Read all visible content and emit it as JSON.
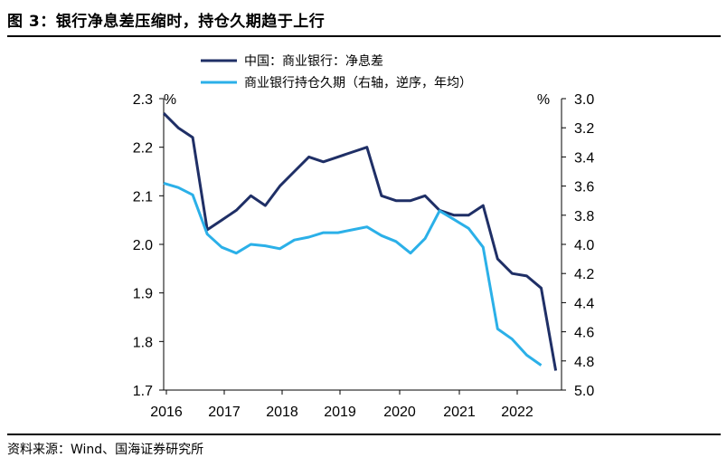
{
  "figure": {
    "title": "图 3：银行净息差压缩时，持仓久期趋于上行",
    "source": "资料来源：Wind、国海证券研究所"
  },
  "chart_data": {
    "type": "line",
    "x_ticks": [
      "2016",
      "2017",
      "2018",
      "2019",
      "2020",
      "2021",
      "2022"
    ],
    "y_left": {
      "unit": "%",
      "ylim": [
        1.7,
        2.3
      ],
      "ticks": [
        "1.7",
        "1.8",
        "1.9",
        "2.0",
        "2.1",
        "2.2",
        "2.3"
      ]
    },
    "y_right": {
      "unit": "%",
      "ylim": [
        3.0,
        5.0
      ],
      "inverted": true,
      "ticks": [
        "3.0",
        "3.2",
        "3.4",
        "3.6",
        "3.8",
        "4.0",
        "4.2",
        "4.4",
        "4.6",
        "4.8",
        "5.0"
      ]
    },
    "series": [
      {
        "name": "中国：商业银行：净息差",
        "axis": "left",
        "color": "#1f2f66",
        "x": [
          2016.0,
          2016.25,
          2016.5,
          2016.75,
          2017.0,
          2017.25,
          2017.5,
          2017.75,
          2018.0,
          2018.25,
          2018.5,
          2018.75,
          2019.0,
          2019.25,
          2019.5,
          2019.75,
          2020.0,
          2020.25,
          2020.5,
          2020.75,
          2021.0,
          2021.25,
          2021.5,
          2021.75,
          2022.0,
          2022.25,
          2022.5,
          2022.75
        ],
        "values": [
          2.27,
          2.24,
          2.22,
          2.03,
          2.05,
          2.07,
          2.1,
          2.08,
          2.12,
          2.15,
          2.18,
          2.17,
          2.18,
          2.19,
          2.2,
          2.1,
          2.09,
          2.09,
          2.1,
          2.07,
          2.06,
          2.06,
          2.08,
          1.97,
          1.94,
          1.935,
          1.91,
          1.74
        ]
      },
      {
        "name": "商业银行持仓久期（右轴，逆序，年均）",
        "axis": "right",
        "color": "#2bb0e8",
        "x": [
          2016.0,
          2016.25,
          2016.5,
          2016.75,
          2017.0,
          2017.25,
          2017.5,
          2017.75,
          2018.0,
          2018.25,
          2018.5,
          2018.75,
          2019.0,
          2019.25,
          2019.5,
          2019.75,
          2020.0,
          2020.25,
          2020.5,
          2020.75,
          2021.0,
          2021.25,
          2021.5,
          2021.75,
          2022.0,
          2022.25,
          2022.5
        ],
        "values": [
          3.58,
          3.61,
          3.66,
          3.93,
          4.02,
          4.06,
          4.0,
          4.01,
          4.03,
          3.97,
          3.95,
          3.92,
          3.92,
          3.9,
          3.88,
          3.94,
          3.98,
          4.06,
          3.96,
          3.77,
          3.83,
          3.89,
          4.02,
          4.58,
          4.65,
          4.76,
          4.83
        ]
      }
    ]
  }
}
